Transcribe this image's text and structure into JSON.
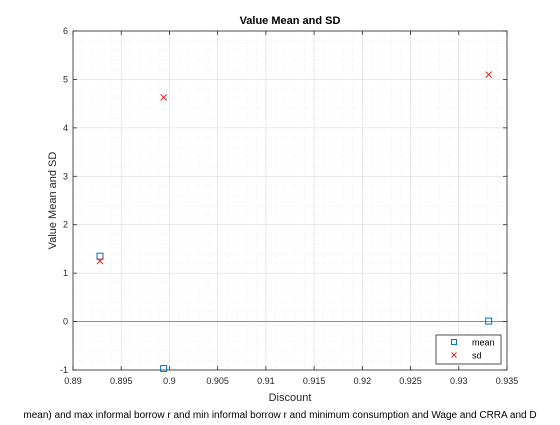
{
  "chart_data": {
    "type": "scatter",
    "title": "Value Mean and SD",
    "xlabel": "Discount",
    "ylabel": "Value Mean and SD",
    "caption": "mean) and max informal borrow r and min informal borrow r and minimum consumption and Wage and CRRA and D",
    "xlim": [
      0.89,
      0.935
    ],
    "ylim": [
      -1,
      6
    ],
    "xticks": [
      0.89,
      0.895,
      0.9,
      0.905,
      0.91,
      0.915,
      0.92,
      0.925,
      0.93,
      0.935
    ],
    "xtick_labels": [
      "0.89",
      "0.895",
      "0.9",
      "0.905",
      "0.91",
      "0.915",
      "0.92",
      "0.925",
      "0.93",
      "0.935"
    ],
    "yticks": [
      -1,
      0,
      1,
      2,
      3,
      4,
      5,
      6
    ],
    "ytick_labels": [
      "-1",
      "0",
      "1",
      "2",
      "3",
      "4",
      "5",
      "6"
    ],
    "grid": true,
    "minor_grid": true,
    "zero_line": true,
    "legend_location": "bottom-right",
    "series": [
      {
        "name": "mean",
        "marker": "square",
        "color": "#0072BD",
        "x": [
          0.8928,
          0.8994,
          0.9331
        ],
        "y": [
          1.35,
          -0.97,
          0.01
        ]
      },
      {
        "name": "sd",
        "marker": "x",
        "color": "#D62728",
        "x": [
          0.8928,
          0.8994,
          0.9331
        ],
        "y": [
          1.25,
          4.63,
          5.1
        ]
      }
    ]
  }
}
